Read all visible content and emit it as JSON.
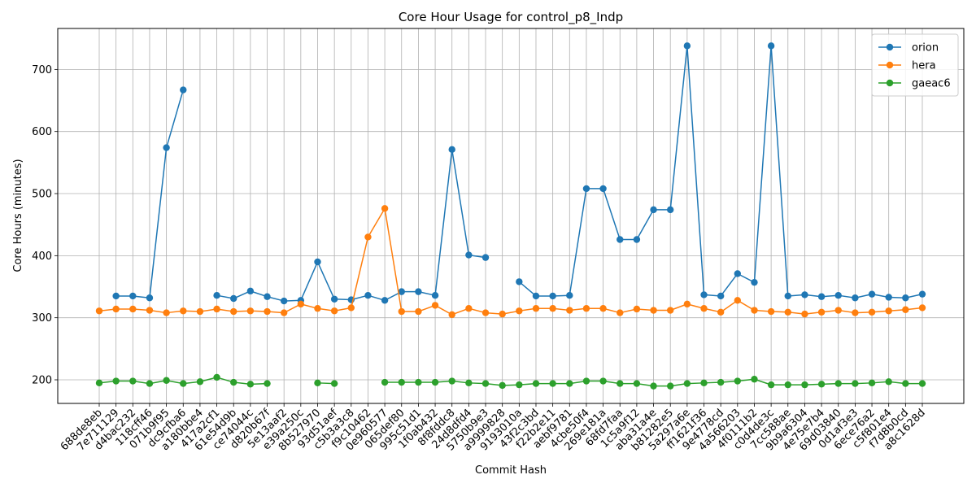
{
  "chart_data": {
    "type": "line",
    "title": "Core Hour Usage for control_p8_Indp",
    "xlabel": "Commit Hash",
    "ylabel": "Core Hours (minutes)",
    "ylim": [
      162,
      766
    ],
    "yticks": [
      200,
      300,
      400,
      500,
      600,
      700
    ],
    "grid": true,
    "legend_position": "top-right",
    "categories": [
      "688de8eb",
      "7e711129",
      "d4bac232",
      "118cff46",
      "071b9f95",
      "dc9cfba6",
      "a180bbe4",
      "417a2cf1",
      "61e54d9b",
      "ce74044c",
      "d820b67f",
      "5e13aaf2",
      "e39a250c",
      "8b527970",
      "93d51aef",
      "c5b3a3c8",
      "f9c10462",
      "0e960577",
      "065def80",
      "995c51d1",
      "1f0ab432",
      "8f8fddc8",
      "24d8dfd4",
      "5750b9e3",
      "a9999828",
      "9193010a",
      "43f2c3bd",
      "f22b2e11",
      "aebf9781",
      "4cbe50f4",
      "269e181a",
      "68fd7faa",
      "1c5a9f12",
      "aba31a4e",
      "b81282e5",
      "5a297a6e",
      "ff1621f36",
      "9e4778cd",
      "4a566203",
      "4f0111b2",
      "c0d4de3c",
      "7cc588ae",
      "9b9a6304",
      "4e75e7b4",
      "69d03840",
      "0d1af3e3",
      "6ece76a2",
      "c5f801e4",
      "f7d8b0cd",
      "a8c1628d"
    ],
    "series": [
      {
        "name": "orion",
        "color": "#1f77b4",
        "values": [
          null,
          335,
          335,
          332,
          574,
          667,
          null,
          336,
          331,
          343,
          334,
          327,
          328,
          390,
          330,
          329,
          336,
          328,
          342,
          342,
          336,
          571,
          401,
          397,
          null,
          358,
          335,
          335,
          336,
          508,
          508,
          426,
          426,
          474,
          474,
          738,
          337,
          335,
          371,
          357,
          738,
          335,
          337,
          334,
          336,
          332,
          338,
          333,
          332,
          338
        ]
      },
      {
        "name": "hera",
        "color": "#ff7f0e",
        "values": [
          311,
          314,
          314,
          312,
          308,
          311,
          310,
          314,
          310,
          311,
          310,
          308,
          322,
          315,
          311,
          316,
          430,
          476,
          310,
          310,
          320,
          305,
          315,
          308,
          306,
          311,
          315,
          315,
          312,
          315,
          315,
          308,
          314,
          312,
          312,
          322,
          315,
          309,
          328,
          312,
          310,
          309,
          306,
          309,
          312,
          308,
          309,
          311,
          313,
          316
        ]
      },
      {
        "name": "gaeac6",
        "color": "#2ca02c",
        "values": [
          195,
          198,
          198,
          194,
          199,
          194,
          197,
          204,
          196,
          193,
          194,
          null,
          null,
          195,
          194,
          null,
          null,
          196,
          196,
          196,
          196,
          198,
          195,
          194,
          191,
          192,
          194,
          194,
          194,
          198,
          198,
          194,
          194,
          190,
          190,
          194,
          195,
          196,
          198,
          201,
          192,
          192,
          192,
          193,
          194,
          194,
          195,
          197,
          194,
          194
        ]
      }
    ]
  }
}
